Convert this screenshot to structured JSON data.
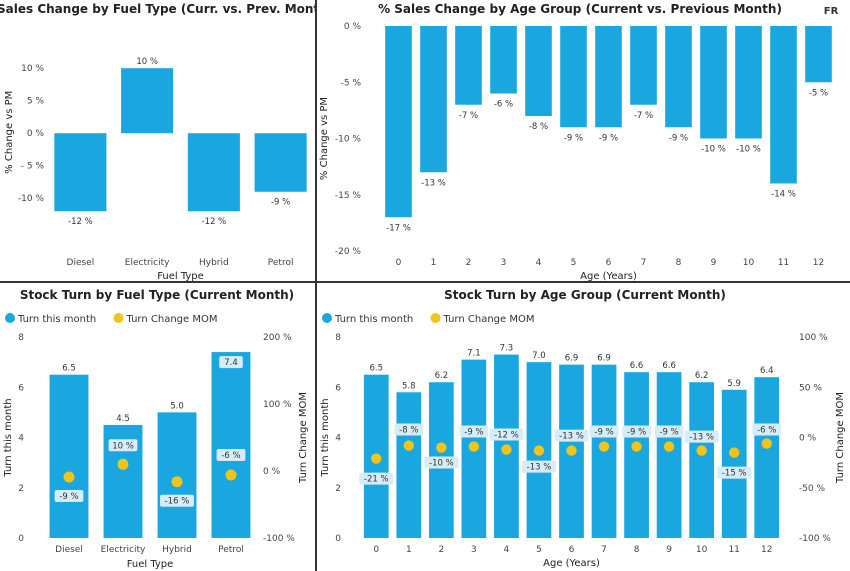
{
  "colors": {
    "bar": "#1AA7E0",
    "dot": "#F0C419",
    "label_bg": "#D6ECF9",
    "text": "#222222",
    "divider": "#333333"
  },
  "chart_data": [
    {
      "type": "bar",
      "title": "% Sales Change by Fuel Type (Curr. vs. Prev. Month)",
      "xlabel": "Fuel Type",
      "ylabel": "% Change vs PM",
      "categories": [
        "Diesel",
        "Electricity",
        "Hybrid",
        "Petrol"
      ],
      "values": [
        -12,
        10,
        -12,
        -9
      ],
      "data_labels": [
        "-12 %",
        "10 %",
        "-12 %",
        "-9 %"
      ],
      "y_ticks": [
        10,
        5,
        0,
        -5,
        -10
      ],
      "y_tick_labels": [
        "10 %",
        "5 %",
        "0 %",
        "- 5 %",
        "-10 %"
      ],
      "ylim": [
        -12.5,
        12.8
      ],
      "grid": false
    },
    {
      "type": "bar",
      "title": "% Sales Change by Age Group (Current vs. Previous Month)",
      "badge": "FR",
      "xlabel": "Age (Years)",
      "ylabel": "% Change vs PM",
      "categories": [
        "0",
        "1",
        "2",
        "3",
        "4",
        "5",
        "6",
        "7",
        "8",
        "9",
        "10",
        "11",
        "12"
      ],
      "values": [
        -17,
        -13,
        -7,
        -6,
        -8,
        -9,
        -9,
        -7,
        -9,
        -10,
        -10,
        -14,
        -5
      ],
      "data_labels": [
        "-17 %",
        "-13 %",
        "-7 %",
        "-6 %",
        "-8 %",
        "-9 %",
        "-9 %",
        "-7 %",
        "-9 %",
        "-10 %",
        "-10 %",
        "-14 %",
        "-5 %"
      ],
      "y_ticks": [
        0,
        -5,
        -10,
        -15,
        -20
      ],
      "y_tick_labels": [
        "0 %",
        "-5 %",
        "-10 %",
        "-15 %",
        "-20 %"
      ],
      "ylim": [
        -20,
        0
      ],
      "grid": false
    },
    {
      "type": "bar",
      "title": "Stock Turn by Fuel Type (Current Month)",
      "xlabel": "Fuel Type",
      "ylabel": "Turn this month",
      "y2label": "Turn Change MOM",
      "legend_position": "top-left",
      "categories": [
        "Diesel",
        "Electricity",
        "Hybrid",
        "Petrol"
      ],
      "series": [
        {
          "name": "Turn this month",
          "type": "bar",
          "values": [
            6.5,
            4.5,
            5.0,
            7.4
          ],
          "labels": [
            "6.5",
            "4.5",
            "5.0",
            "7.4"
          ]
        },
        {
          "name": "Turn Change MOM",
          "type": "scatter",
          "axis": "right",
          "values": [
            -9,
            10,
            -16,
            -6
          ],
          "labels": [
            "-9 %",
            "10 %",
            "-16 %",
            "-6 %"
          ]
        }
      ],
      "y_ticks": [
        0,
        2,
        4,
        6,
        8
      ],
      "y_tick_labels": [
        "0",
        "2",
        "4",
        "6",
        "8"
      ],
      "ylim": [
        0,
        8
      ],
      "y2_ticks": [
        -100,
        0,
        100,
        200
      ],
      "y2_tick_labels": [
        "-100 %",
        "0 %",
        "100 %",
        "200 %"
      ],
      "y2lim": [
        -100,
        200
      ]
    },
    {
      "type": "bar",
      "title": "Stock Turn by Age Group (Current Month)",
      "xlabel": "Age (Years)",
      "ylabel": "Turn this month",
      "y2label": "Turn Change MOM",
      "legend_position": "top-left",
      "categories": [
        "0",
        "1",
        "2",
        "3",
        "4",
        "5",
        "6",
        "7",
        "8",
        "9",
        "10",
        "11",
        "12"
      ],
      "series": [
        {
          "name": "Turn this month",
          "type": "bar",
          "values": [
            6.5,
            5.8,
            6.2,
            7.1,
            7.3,
            7.0,
            6.9,
            6.9,
            6.6,
            6.6,
            6.2,
            5.9,
            6.4
          ],
          "labels": [
            "6.5",
            "5.8",
            "6.2",
            "7.1",
            "7.3",
            "7.0",
            "6.9",
            "6.9",
            "6.6",
            "6.6",
            "6.2",
            "5.9",
            "6.4"
          ]
        },
        {
          "name": "Turn Change MOM",
          "type": "scatter",
          "axis": "right",
          "values": [
            -21,
            -8,
            -10,
            -9,
            -12,
            -13,
            -13,
            -9,
            -9,
            -9,
            -13,
            -15,
            -6
          ],
          "labels": [
            "-21 %",
            "-8 %",
            "-10 %",
            "-9 %",
            "-12 %",
            "-13 %",
            "-13 %",
            "-9 %",
            "-9 %",
            "-9 %",
            "-13 %",
            "-15 %",
            "-6 %"
          ]
        }
      ],
      "y_ticks": [
        0,
        2,
        4,
        6,
        8
      ],
      "y_tick_labels": [
        "0",
        "2",
        "4",
        "6",
        "8"
      ],
      "ylim": [
        0,
        8
      ],
      "y2_ticks": [
        -100,
        -50,
        0,
        50,
        100
      ],
      "y2_tick_labels": [
        "-100 %",
        "-50 %",
        "0 %",
        "50 %",
        "100 %"
      ],
      "y2lim": [
        -100,
        100
      ]
    }
  ]
}
